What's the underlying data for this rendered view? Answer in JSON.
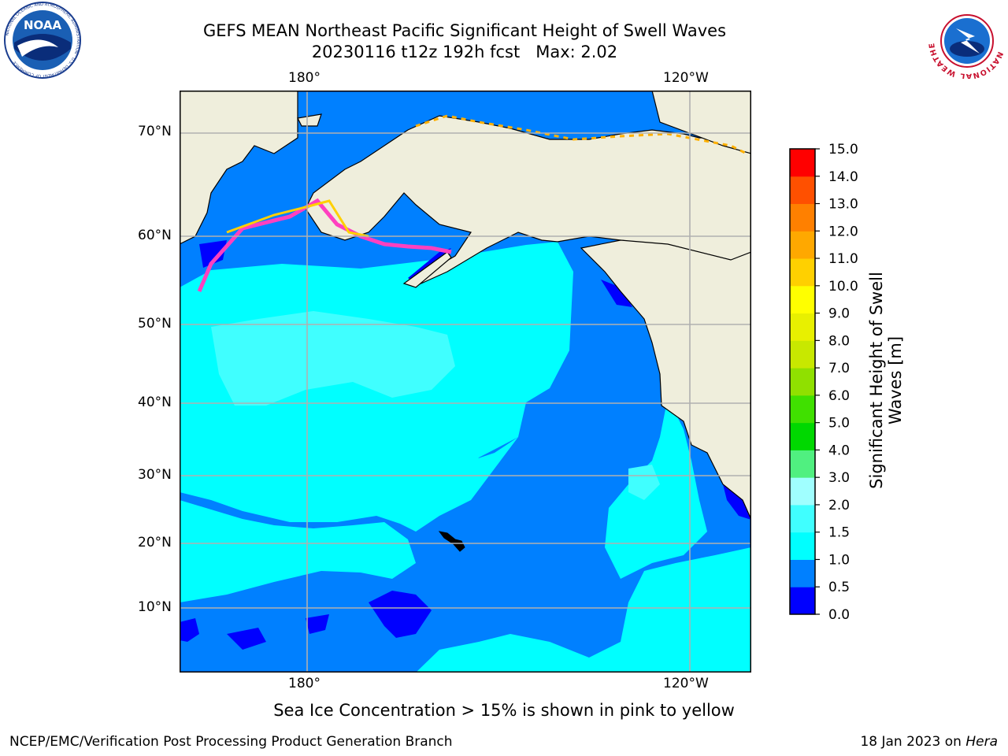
{
  "title_line1": "GEFS MEAN Northeast Pacific Significant Height of Swell Waves",
  "title_line2": "20230116 t12z 192h fcst   Max: 2.02",
  "map": {
    "lon_labels_top": [
      "180°",
      "120°W"
    ],
    "lon_labels_bottom": [
      "180°",
      "120°W"
    ],
    "lat_labels": [
      "70°N",
      "60°N",
      "50°N",
      "40°N",
      "30°N",
      "20°N",
      "10°N"
    ],
    "gridlines": true
  },
  "colorbar": {
    "label": "Significant Height of Swell Waves [m]",
    "ticks": [
      "0.0",
      "0.5",
      "1.0",
      "1.5",
      "2.0",
      "3.0",
      "4.0",
      "5.0",
      "6.0",
      "7.0",
      "8.0",
      "9.0",
      "10.0",
      "11.0",
      "12.0",
      "13.0",
      "14.0",
      "15.0"
    ],
    "colors": [
      "#0000ff",
      "#0080ff",
      "#00ffff",
      "#40ffff",
      "#a0ffff",
      "#50f080",
      "#00d800",
      "#40e000",
      "#90e000",
      "#c8e800",
      "#e8f000",
      "#ffff00",
      "#ffd000",
      "#ffa800",
      "#ff8000",
      "#ff5000",
      "#ff0000"
    ]
  },
  "note": "Sea Ice Concentration > 15% is shown in pink to yellow",
  "footer_left": "NCEP/EMC/Verification Post Processing Product Generation Branch",
  "footer_right_prefix": "18 Jan 2023 on ",
  "footer_right_host": "Hera",
  "logos": {
    "left": "noaa-logo-icon",
    "right": "national-weather-service-logo-icon",
    "right_ring_text": "NATIONAL WEATHER SERVICE",
    "left_ring_text": "NATIONAL OCEANIC AND ATMOSPHERIC ADMINISTRATION · U.S. DEPARTMENT OF COMMERCE",
    "left_center": "NOAA"
  },
  "colors": {
    "land": "#efeedc",
    "ocean_deep": "#0000ff",
    "ocean_low": "#0080ff",
    "ocean_mid": "#00ffff",
    "ocean_high": "#40ffff",
    "grid": "#b0b0b0"
  }
}
